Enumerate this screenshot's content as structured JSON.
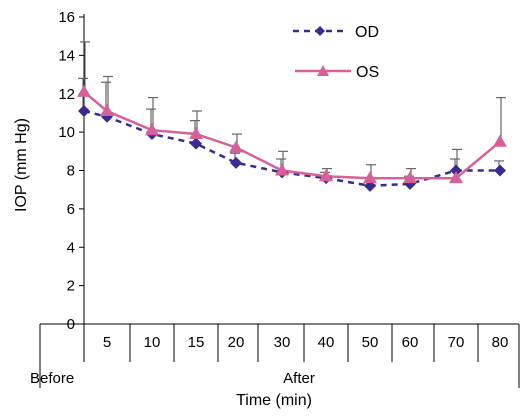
{
  "chart_data": {
    "type": "line",
    "title": "",
    "ylabel": "IOP (mm Hg)",
    "xlabel": "Time (min)",
    "ylim": [
      0,
      16
    ],
    "yticks": [
      "0",
      "2",
      "4",
      "6",
      "8",
      "10",
      "12",
      "14",
      "16"
    ],
    "categories": [
      "Before",
      "5",
      "10",
      "15",
      "20",
      "30",
      "40",
      "50",
      "60",
      "70",
      "80"
    ],
    "group_labels": {
      "before": "Before",
      "after": "After"
    },
    "legend_position": "top-right",
    "grid": false,
    "series": [
      {
        "name": "OD",
        "color": "#3a2a8c",
        "marker": "diamond",
        "line_style": "dashed",
        "values": [
          11.1,
          10.8,
          9.9,
          9.4,
          8.4,
          7.9,
          7.6,
          7.2,
          7.3,
          8.0,
          8.0
        ],
        "error_upper": [
          12.8,
          12.6,
          11.2,
          10.6,
          8.9,
          8.6,
          7.9,
          7.6,
          7.7,
          8.6,
          8.5
        ]
      },
      {
        "name": "OS",
        "color": "#d6609a",
        "marker": "triangle",
        "line_style": "solid",
        "values": [
          12.1,
          11.1,
          10.1,
          9.9,
          9.2,
          8.0,
          7.7,
          7.6,
          7.6,
          7.6,
          9.5
        ],
        "error_upper": [
          14.7,
          12.9,
          11.8,
          11.1,
          9.9,
          9.0,
          8.1,
          8.3,
          8.1,
          9.1,
          11.8
        ]
      }
    ]
  }
}
